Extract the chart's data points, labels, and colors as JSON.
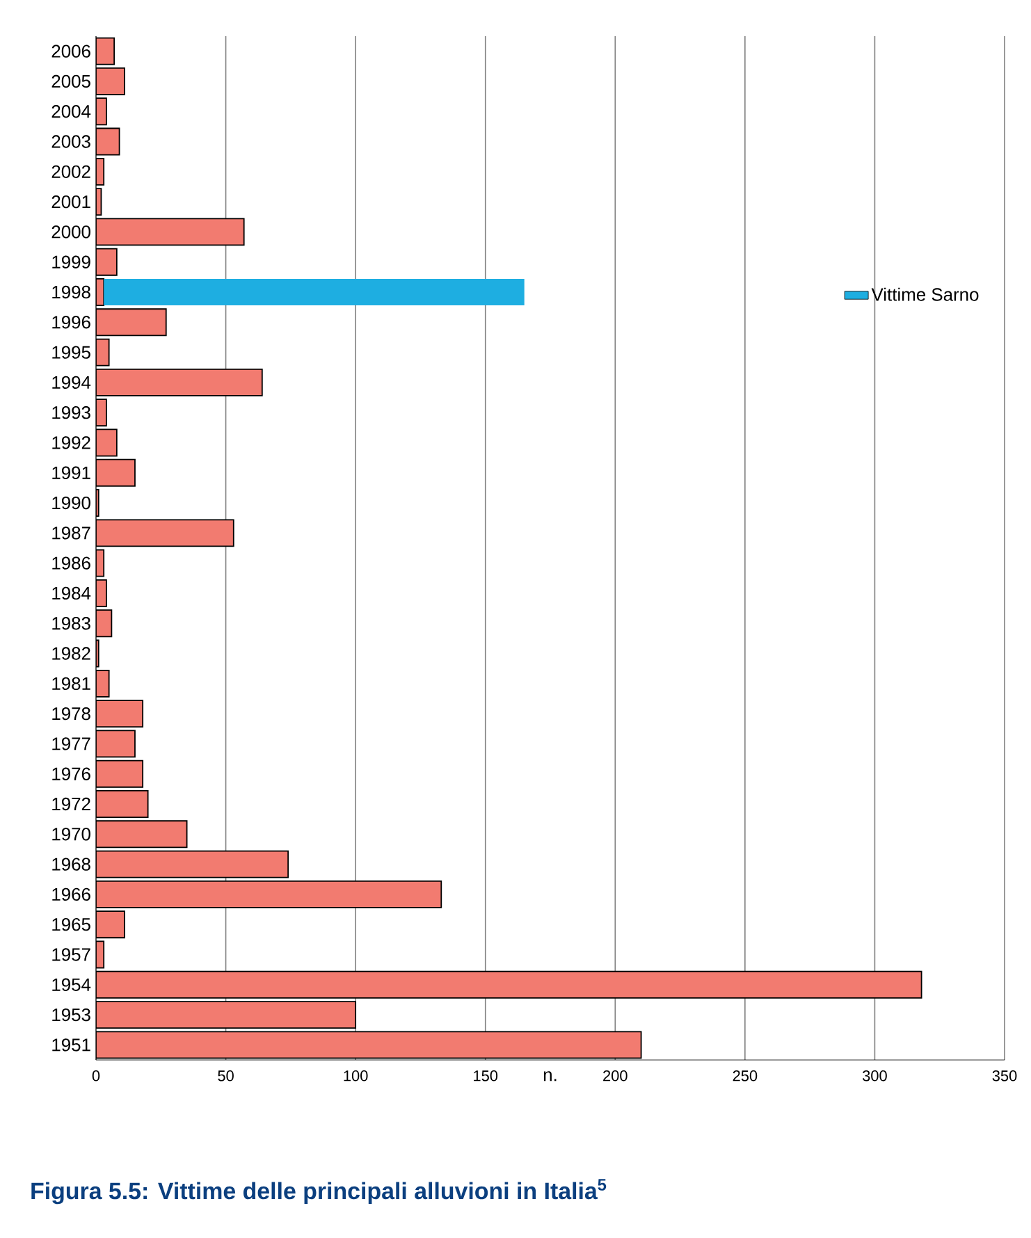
{
  "chart_data": {
    "type": "bar",
    "orientation": "horizontal",
    "stacked": true,
    "title": "Figura 5.5: Vittime delle principali alluvioni in Italia$^{5}$",
    "xlabel": "n.",
    "categories": [
      "2006",
      "2005",
      "2004",
      "2003",
      "2002",
      "2001",
      "2000",
      "1999",
      "1998",
      "1996",
      "1995",
      "1994",
      "1993",
      "1992",
      "1991",
      "1990",
      "1987",
      "1986",
      "1984",
      "1983",
      "1982",
      "1981",
      "1978",
      "1977",
      "1976",
      "1972",
      "1970",
      "1968",
      "1966",
      "1965",
      "1957",
      "1954",
      "1953",
      "1951"
    ],
    "series": [
      {
        "color": "#f27b70",
        "values": [
          7,
          11,
          4,
          9,
          3,
          2,
          57,
          8,
          3,
          27,
          5,
          64,
          4,
          8,
          15,
          1,
          53,
          3,
          4,
          6,
          1,
          5,
          18,
          15,
          18,
          20,
          35,
          74,
          133,
          11,
          3,
          318,
          100,
          210
        ]
      },
      {
        "name": "Vittime Sarno",
        "color": "#1eaee1",
        "values": [
          null,
          null,
          null,
          null,
          null,
          null,
          null,
          null,
          162,
          null,
          null,
          null,
          null,
          null,
          null,
          null,
          null,
          null,
          null,
          null,
          null,
          null,
          null,
          null,
          null,
          null,
          null,
          null,
          null,
          null,
          null,
          null,
          null,
          null
        ]
      }
    ],
    "xlim": [
      0,
      350
    ],
    "xticks": [
      0,
      50,
      100,
      150,
      200,
      250,
      300,
      350
    ],
    "grid": "x",
    "legend": "top right"
  }
}
